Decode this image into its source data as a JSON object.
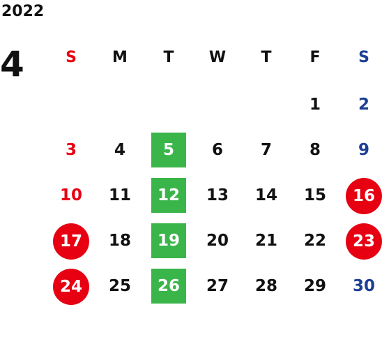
{
  "year": "2022",
  "month": "4",
  "weekdays": [
    "S",
    "M",
    "T",
    "W",
    "T",
    "F",
    "S"
  ],
  "colors": {
    "sunday": "#e60012",
    "saturday": "#1c3f94",
    "green_highlight": "#3ab54a",
    "red_highlight": "#e60012"
  },
  "weeks": [
    [
      "",
      "",
      "",
      "",
      "",
      "1",
      "2"
    ],
    [
      "3",
      "4",
      "5",
      "6",
      "7",
      "8",
      "9"
    ],
    [
      "10",
      "11",
      "12",
      "13",
      "14",
      "15",
      "16"
    ],
    [
      "17",
      "18",
      "19",
      "20",
      "21",
      "22",
      "23"
    ],
    [
      "24",
      "25",
      "26",
      "27",
      "28",
      "29",
      "30"
    ]
  ]
}
